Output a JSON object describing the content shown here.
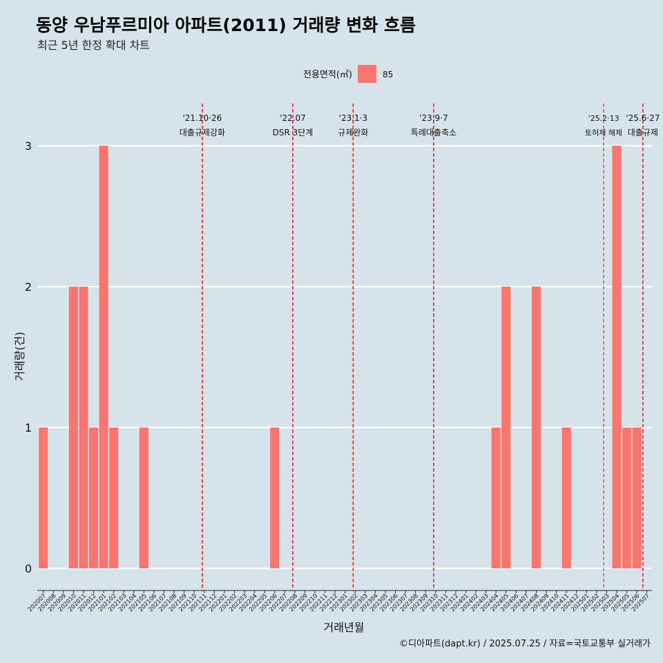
{
  "chart_data": {
    "type": "bar",
    "title": "동양 우남푸르미아 아파트(2011) 거래량 변화 흐름",
    "subtitle": "최근 5년 한정 확대 차트",
    "xlabel": "거래년월",
    "ylabel": "거래량(건)",
    "caption": "©디아파트(dapt.kr) / 2025.07.25 / 자료=국토교통부 실거래가",
    "legend": {
      "title": "전용면적(㎡)",
      "position": "top",
      "entries": [
        {
          "name": "85",
          "color": "#f8766d"
        }
      ]
    },
    "ylim": [
      0,
      3
    ],
    "yticks": [
      0,
      1,
      2,
      3
    ],
    "grid": true,
    "categories": [
      "202007",
      "202008",
      "202009",
      "202010",
      "202011",
      "202012",
      "202101",
      "202102",
      "202103",
      "202104",
      "202105",
      "202106",
      "202107",
      "202108",
      "202109",
      "202110",
      "202111",
      "202112",
      "202201",
      "202202",
      "202203",
      "202204",
      "202205",
      "202206",
      "202207",
      "202208",
      "202209",
      "202210",
      "202211",
      "202212",
      "202301",
      "202302",
      "202303",
      "202304",
      "202305",
      "202306",
      "202307",
      "202308",
      "202309",
      "202310",
      "202311",
      "202312",
      "202401",
      "202402",
      "202403",
      "202404",
      "202405",
      "202406",
      "202407",
      "202408",
      "202409",
      "202410",
      "202411",
      "202412",
      "202501",
      "202502",
      "202503",
      "202504",
      "202505",
      "202506",
      "202507"
    ],
    "series": [
      {
        "name": "85",
        "color": "#f8766d",
        "values": [
          1,
          0,
          0,
          2,
          2,
          1,
          3,
          1,
          0,
          0,
          1,
          0,
          0,
          0,
          0,
          0,
          0,
          0,
          0,
          0,
          0,
          0,
          0,
          1,
          0,
          0,
          0,
          0,
          0,
          0,
          0,
          0,
          0,
          0,
          0,
          0,
          0,
          0,
          0,
          0,
          0,
          0,
          0,
          0,
          0,
          1,
          2,
          0,
          0,
          2,
          0,
          0,
          1,
          0,
          0,
          0,
          0,
          3,
          1,
          1,
          0
        ]
      }
    ],
    "annotations": [
      {
        "x": 15.8,
        "date": "'21.10·26",
        "label": "대출규제강화",
        "major": true
      },
      {
        "x": 24.8,
        "date": "'22.07",
        "label": "DSR 3단계",
        "major": true
      },
      {
        "x": 30.8,
        "date": "'23.1·3",
        "label": "규제완화",
        "major": true
      },
      {
        "x": 38.8,
        "date": "'23.9·7",
        "label": "특례대출축소",
        "major": true
      },
      {
        "x": 55.7,
        "date": "'25.2·13",
        "label": "토허제 해제",
        "major": false
      },
      {
        "x": 59.6,
        "date": "'25.6·27",
        "label": "대출규제",
        "major": true
      }
    ],
    "colors": {
      "background": "#d6e3ea",
      "bar": "#f8766d",
      "line": "#e8231c",
      "grid": "#ffffff"
    }
  }
}
